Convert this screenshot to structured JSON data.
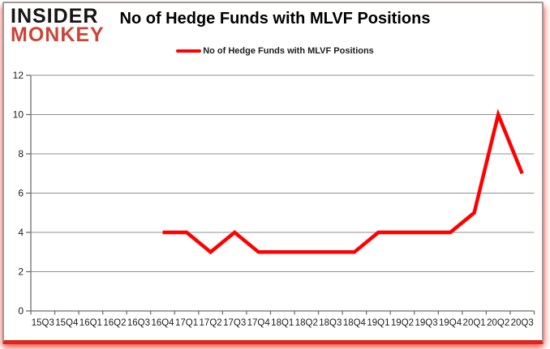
{
  "logo": {
    "line1": "INSIDER",
    "line2": "MONKEY",
    "line1_color": "#151515",
    "line2_color": "#cc4437"
  },
  "header": {
    "title": "No of Hedge Funds with MLVF Positions"
  },
  "legend": {
    "label": "No of Hedge Funds with MLVF Positions",
    "marker_color": "#ff0000"
  },
  "chart_data": {
    "type": "line",
    "title": "No of Hedge Funds with MLVF Positions",
    "categories": [
      "15Q3",
      "15Q4",
      "16Q1",
      "16Q2",
      "16Q3",
      "16Q4",
      "17Q1",
      "17Q2",
      "17Q3",
      "17Q4",
      "18Q1",
      "18Q2",
      "18Q3",
      "18Q4",
      "19Q1",
      "19Q2",
      "19Q3",
      "19Q4",
      "20Q1",
      "20Q2",
      "20Q3"
    ],
    "series": [
      {
        "name": "No of Hedge Funds with MLVF Positions",
        "color": "#ff0000",
        "values": [
          null,
          null,
          null,
          null,
          null,
          4,
          4,
          3,
          4,
          3,
          3,
          3,
          3,
          3,
          4,
          4,
          4,
          4,
          5,
          10,
          7
        ]
      }
    ],
    "xlabel": "",
    "ylabel": "",
    "ylim": [
      0,
      12
    ],
    "yticks": [
      0,
      2,
      4,
      6,
      8,
      10,
      12
    ],
    "grid": true,
    "legend_position": "top",
    "axis_color": "#6e6e6e",
    "grid_color": "#8f8f8f",
    "label_color": "#1c1c1c"
  },
  "frame": {
    "border_color": "#9b9b9b",
    "bottom_bar_color": "#e0251a"
  }
}
